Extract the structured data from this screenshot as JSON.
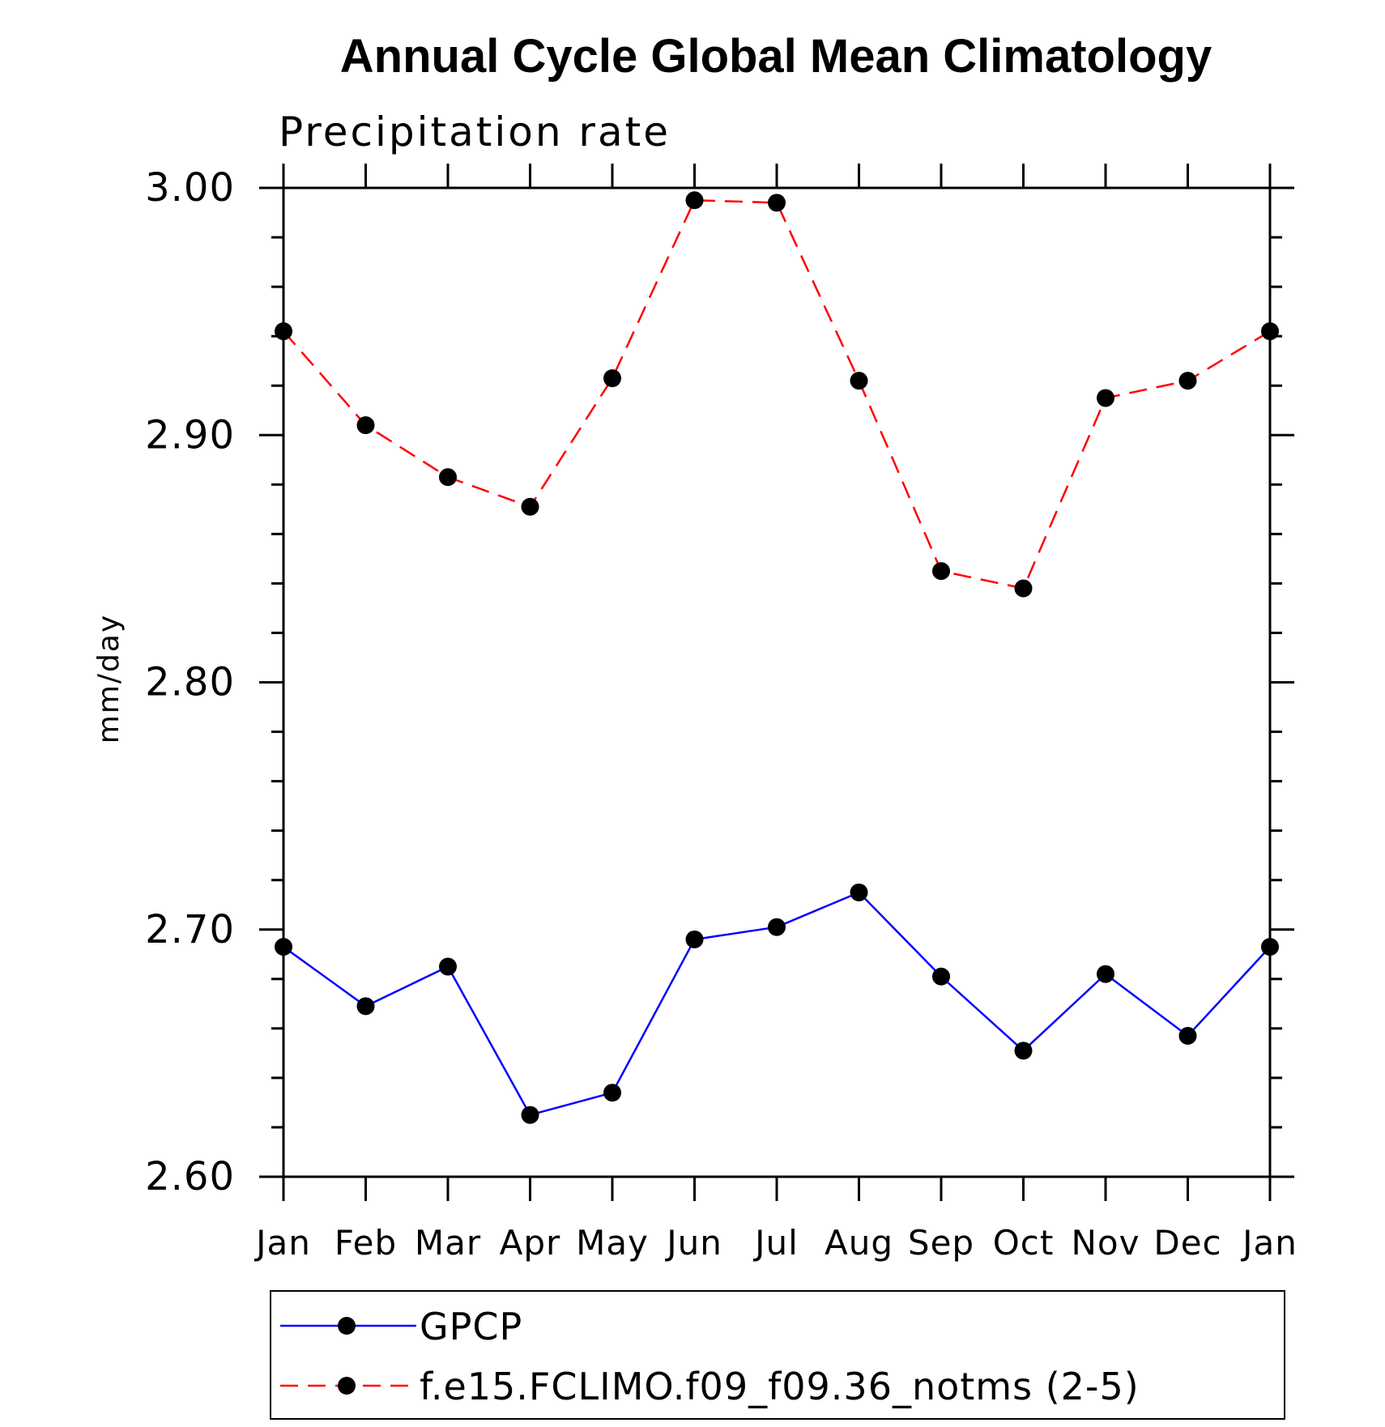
{
  "chart_data": {
    "type": "line",
    "title": "Annual Cycle Global Mean Climatology",
    "subtitle": "Precipitation rate",
    "ylabel": "mm/day",
    "xlabel": "",
    "categories": [
      "Jan",
      "Feb",
      "Mar",
      "Apr",
      "May",
      "Jun",
      "Jul",
      "Aug",
      "Sep",
      "Oct",
      "Nov",
      "Dec",
      "Jan"
    ],
    "ylim": [
      2.6,
      3.0
    ],
    "yticks": [
      "2.60",
      "2.70",
      "2.80",
      "2.90",
      "3.00"
    ],
    "grid": false,
    "legend_position": "bottom",
    "series": [
      {
        "name": "GPCP",
        "color": "#0000ff",
        "line_style": "solid",
        "marker": "filled-circle",
        "values": [
          2.693,
          2.669,
          2.685,
          2.625,
          2.634,
          2.696,
          2.701,
          2.715,
          2.681,
          2.651,
          2.682,
          2.657,
          2.693
        ]
      },
      {
        "name": "f.e15.FCLIMO.f09_f09.36_notms (2-5)",
        "color": "#ff0000",
        "line_style": "dashed",
        "marker": "filled-circle",
        "values": [
          2.942,
          2.904,
          2.883,
          2.871,
          2.923,
          2.995,
          2.994,
          2.922,
          2.845,
          2.838,
          2.915,
          2.922,
          2.942
        ]
      }
    ]
  }
}
